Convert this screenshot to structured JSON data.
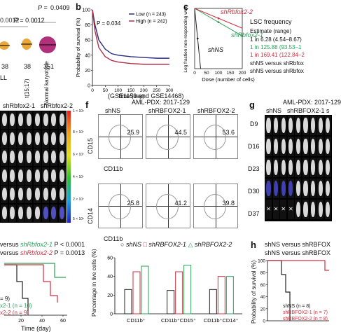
{
  "panel_a": {
    "p1": "0.0012",
    "p2": "0.0409",
    "p3": "P = 0.0012",
    "counts": [
      "38",
      "38",
      "351"
    ],
    "group_labels": [
      "t(15;17)",
      "Normal karyotype"
    ],
    "left_partial": "LL"
  },
  "panel_b": {
    "letter": "b",
    "p_value": "P = 0.034",
    "legend_low": "Low (n = 243)",
    "legend_high": "High (n = 242)",
    "ylabel": "Probability of survival (%)",
    "xlabel": "Time (day)",
    "source": "(GSE1159 and GSE14468)",
    "colors": {
      "low": "#2a2a7a",
      "high": "#b0304a"
    }
  },
  "panel_c": {
    "letter": "c",
    "ylabel": "Log fraction non-responding wells",
    "xlabel": "Dose (number of cells)",
    "label_shRbfox2_2": "shRbfox2-2",
    "label_shRbfox2_1": "shRbfox2-1",
    "label_shNS": "shNS",
    "lsc_title": "LSC frequency",
    "estimate": "Estimate (range)",
    "rows": [
      "1 in 6.28 (4.54–8.67)",
      "1 in 125.88 (93.53–1",
      "1 in 169.41 (122.84–2"
    ],
    "versus": [
      "shNS versus shRbfox",
      "shNS versus shRbfox"
    ],
    "colors": {
      "shNS": "#222222",
      "kd1": "#2aa05a",
      "kd2": "#d03040"
    }
  },
  "chart_data": [
    {
      "type": "line",
      "panel": "b",
      "xlabel": "Time (day)",
      "ylabel": "Probability of survival (%)",
      "xlim": [
        0,
        300
      ],
      "ylim": [
        0,
        100
      ],
      "xticks": [
        0,
        50,
        100,
        150,
        200,
        250,
        300
      ],
      "yticks": [
        0,
        20,
        40,
        60,
        80,
        100
      ],
      "series": [
        {
          "name": "Low (n = 243)",
          "x": [
            0,
            10,
            25,
            50,
            75,
            100,
            150,
            200,
            250,
            300
          ],
          "y": [
            100,
            80,
            60,
            48,
            42,
            40,
            38,
            37,
            36,
            36
          ]
        },
        {
          "name": "High (n = 242)",
          "x": [
            0,
            10,
            25,
            50,
            75,
            100,
            150,
            200,
            250,
            300
          ],
          "y": [
            100,
            72,
            50,
            38,
            33,
            31,
            29,
            28,
            28,
            28
          ]
        }
      ]
    },
    {
      "type": "line",
      "panel": "c",
      "xlabel": "Dose (number of cells)",
      "ylabel": "Log fraction non-responding wells",
      "xlim": [
        0,
        200
      ],
      "ylim": [
        -3.5,
        0
      ],
      "xticks": [
        0,
        50,
        100,
        150,
        200
      ],
      "series": [
        {
          "name": "shNS",
          "x": [
            0,
            25
          ],
          "y": [
            0,
            -3.5
          ]
        },
        {
          "name": "shRbfox2-1",
          "x": [
            0,
            200
          ],
          "y": [
            0,
            -1.6
          ]
        },
        {
          "name": "shRbfox2-2",
          "x": [
            0,
            200
          ],
          "y": [
            0,
            -1.15
          ]
        }
      ]
    },
    {
      "type": "bar",
      "panel": "f-lower",
      "ylabel": "Percentage in live cells (%)",
      "categories": [
        "CD11b+",
        "CD11b+CD15+",
        "CD11b+CD14+"
      ],
      "ylim": [
        0,
        60
      ],
      "yticks": [
        0,
        20,
        40,
        60
      ],
      "series": [
        {
          "name": "shNS",
          "values": [
            26,
            25,
            26
          ]
        },
        {
          "name": "shRBFOX2-1",
          "values": [
            45,
            45,
            40
          ]
        },
        {
          "name": "shRBFOX2-2",
          "values": [
            51,
            52,
            40
          ]
        }
      ]
    }
  ],
  "panel_e": {
    "col1": "shRbfox2-1",
    "col2": "shRbfox2-2",
    "scale": [
      "1 × 10⁹",
      "8 × 10⁷",
      "6 × 10⁷",
      "4 × 10⁷",
      "2 × 10⁷",
      "5 × 10⁶"
    ]
  },
  "panel_f": {
    "letter": "f",
    "title": "AML-PDX: 2017-129",
    "cols": [
      "shNS",
      "shRBFOX2-1",
      "shRBFOX2-2"
    ],
    "row1_y": "CD15",
    "row2_y": "CD14",
    "x_label": "CD11b",
    "row1_pct": [
      "25.9",
      "44.5",
      "53.6"
    ],
    "row2_pct": [
      "25.8",
      "41.2",
      "39.8"
    ]
  },
  "panel_f_bar": {
    "legend": [
      "shNS",
      "shRBFOX2-1",
      "shRBFOX2-2"
    ],
    "ylabel": "Percentage in live cells (%)",
    "yticks": [
      "0",
      "20",
      "40",
      "60"
    ],
    "cats": [
      "CD11b⁺",
      "CD11b⁺CD15⁺",
      "CD11b⁺CD14⁺"
    ],
    "colors": {
      "shNS": "#222222",
      "kd1": "#d03040",
      "kd2": "#2aa05a"
    }
  },
  "panel_g": {
    "letter": "g",
    "title": "AML-PDX: 2017-129",
    "cols": [
      "shNS",
      "shRBFOX2-1",
      "s"
    ],
    "days": [
      "D9",
      "D16",
      "D23",
      "D30",
      "D37"
    ]
  },
  "panel_d_lower": {
    "line1_pre": "versus ",
    "line1_sh": "shRbfox2-1",
    "line1_p": " P < 0.0001",
    "line2_pre": "versus ",
    "line2_sh": "shRbfox2-2",
    "line2_p": " P = 0.0013",
    "n1": "= 9)",
    "n2": "x2-1 (n = 10)",
    "n3": "x2-2 (n = 9)",
    "xlabel": "Time (day)",
    "xticks": [
      "20",
      "40",
      "60"
    ]
  },
  "panel_h": {
    "letter": "h",
    "line1": "shNS versus shRBFOX",
    "line2": "shNS versus shRBFOX",
    "ylabel": "Probability of survival (%)",
    "yticks": [
      "0",
      "20",
      "40",
      "60",
      "80",
      "100"
    ],
    "legend": [
      "shNS (n = 8)",
      "shRBFOX2-1 (n = 7)",
      "shRBFOX2-2 (n = 8)"
    ]
  }
}
